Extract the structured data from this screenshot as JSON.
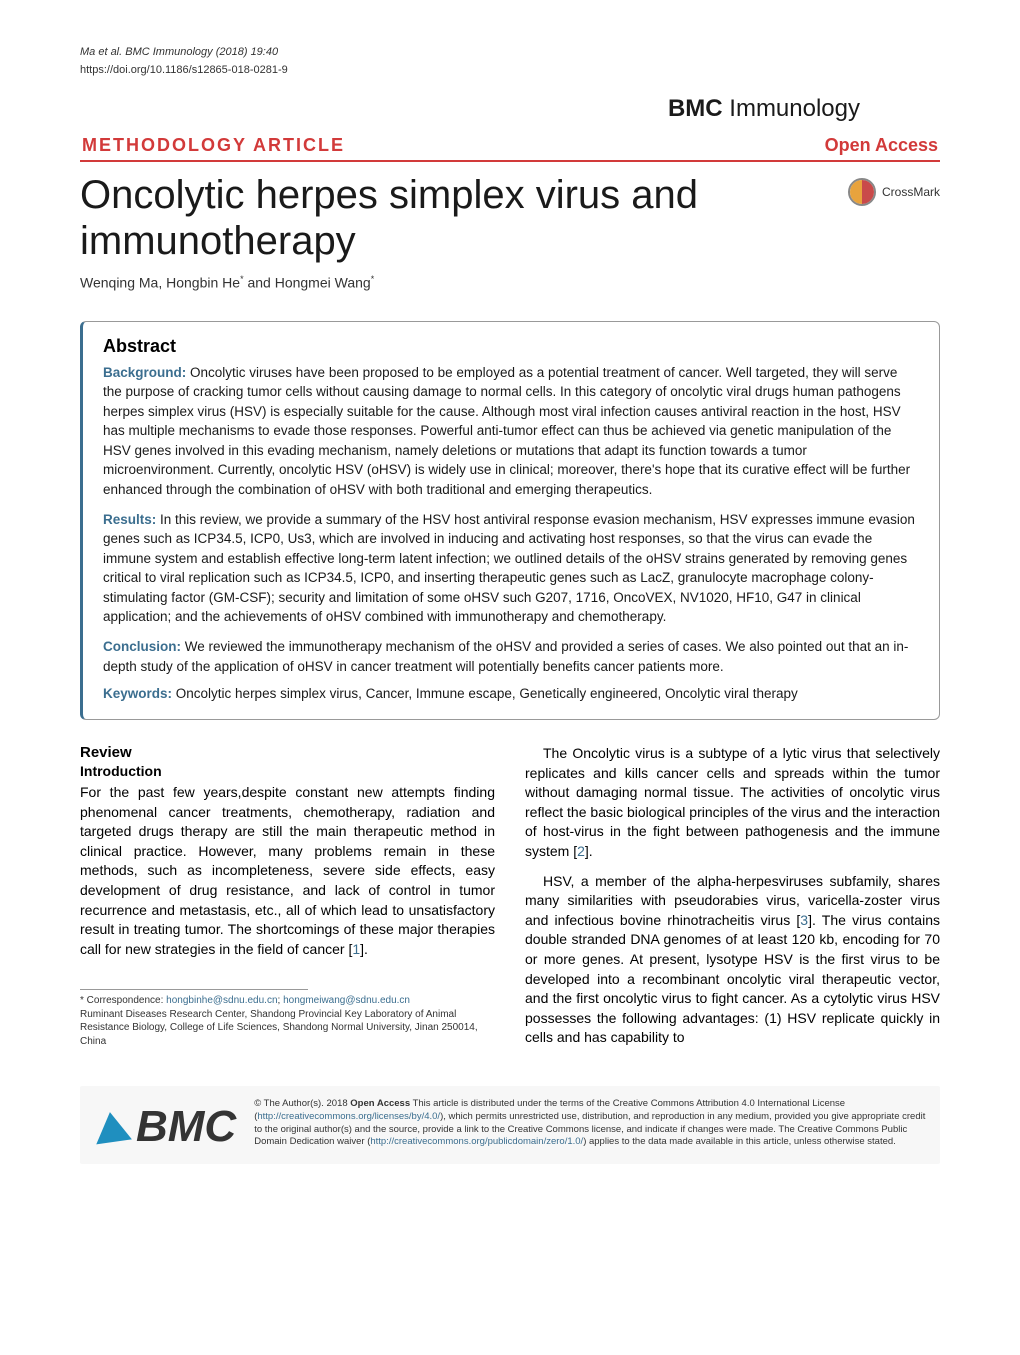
{
  "header": {
    "citation": "Ma et al. BMC Immunology     (2018) 19:40",
    "doi": "https://doi.org/10.1186/s12865-018-0281-9",
    "journal_prefix": "BMC",
    "journal_name": " Immunology"
  },
  "article_type": "METHODOLOGY ARTICLE",
  "open_access": "Open Access",
  "title": "Oncolytic herpes simplex virus and immunotherapy",
  "crossmark_label": "CrossMark",
  "authors_html": "Wenqing Ma, Hongbin He* and Hongmei Wang*",
  "abstract": {
    "heading": "Abstract",
    "background_label": "Background:",
    "background": " Oncolytic viruses have been proposed to be employed as a potential treatment of cancer. Well targeted, they will serve the purpose of cracking tumor cells without causing damage to normal cells. In this category of oncolytic viral drugs human pathogens herpes simplex virus (HSV) is especially suitable for the cause. Although most viral infection causes antiviral reaction in the host, HSV has multiple mechanisms to evade those responses. Powerful anti-tumor effect can thus be achieved via genetic manipulation of the HSV genes involved in this evading mechanism, namely deletions or mutations that adapt its function towards a tumor microenvironment. Currently, oncolytic HSV (oHSV) is widely use in clinical; moreover, there's hope that its curative effect will be further enhanced through the combination of oHSV with both traditional and emerging therapeutics.",
    "results_label": "Results:",
    "results": " In this review, we provide a summary of the HSV host antiviral response evasion mechanism, HSV expresses immune evasion genes such as ICP34.5, ICP0, Us3, which are involved in inducing and activating host responses, so that the virus can evade the immune system and establish effective long-term latent infection; we outlined details of the oHSV strains generated by removing genes critical to viral replication such as ICP34.5, ICP0, and inserting therapeutic genes such as LacZ, granulocyte macrophage colony-stimulating factor (GM-CSF); security and limitation of some oHSV such G207, 1716, OncoVEX, NV1020, HF10, G47 in clinical application; and the achievements of oHSV combined with immunotherapy and chemotherapy.",
    "conclusion_label": "Conclusion:",
    "conclusion": " We reviewed the immunotherapy mechanism of the oHSV and provided a series of cases. We also pointed out that an in-depth study of the application of oHSV in cancer treatment will potentially benefits cancer patients more.",
    "keywords_label": "Keywords:",
    "keywords": " Oncolytic herpes simplex virus, Cancer, Immune escape, Genetically engineered, Oncolytic viral therapy"
  },
  "body": {
    "review_heading": "Review",
    "intro_heading": "Introduction",
    "left_p1": "For the past few years,despite constant new attempts finding phenomenal cancer treatments, chemotherapy, radiation and targeted drugs therapy are still the main therapeutic method in clinical practice. However, many problems remain in these methods, such as incompleteness, severe side effects, easy development of drug resistance, and lack of control in tumor recurrence and metastasis, etc., all of which lead to unsatisfactory result in treating tumor. The shortcomings of these major therapies call for new strategies in the field of cancer [",
    "left_ref1": "1",
    "left_p1_end": "].",
    "right_p1_a": "The Oncolytic virus is a subtype of a lytic virus that selectively replicates and kills cancer cells and spreads within the tumor without damaging normal tissue. The activities of oncolytic virus reflect the basic biological principles of the virus and the interaction of host-virus in the fight between pathogenesis and the immune system [",
    "right_ref2": "2",
    "right_p1_b": "].",
    "right_p2_a": "HSV, a member of the alpha-herpesviruses subfamily, shares many similarities with pseudorabies virus, varicella-zoster virus and infectious bovine rhinotracheitis virus [",
    "right_ref3": "3",
    "right_p2_b": "]. The virus contains double stranded DNA genomes of at least 120 kb, encoding for 70 or more genes. At present, lysotype HSV is the first virus to be developed into a recombinant oncolytic viral therapeutic vector, and the first oncolytic virus to fight cancer. As a cytolytic virus HSV possesses the following advantages: (1) HSV replicate quickly in cells and has capability to"
  },
  "footnote": {
    "correspondence_label": "* Correspondence: ",
    "email1": "hongbinhe@sdnu.edu.cn",
    "sep": "; ",
    "email2": "hongmeiwang@sdnu.edu.cn",
    "affiliation": "Ruminant Diseases Research Center, Shandong Provincial Key Laboratory of Animal Resistance Biology, College of Life Sciences, Shandong Normal University, Jinan 250014, China"
  },
  "license": {
    "bmc": "BMC",
    "text_a": "© The Author(s). 2018 ",
    "open_access_bold": "Open Access",
    "text_b": " This article is distributed under the terms of the Creative Commons Attribution 4.0 International License (",
    "link1": "http://creativecommons.org/licenses/by/4.0/",
    "text_c": "), which permits unrestricted use, distribution, and reproduction in any medium, provided you give appropriate credit to the original author(s) and the source, provide a link to the Creative Commons license, and indicate if changes were made. The Creative Commons Public Domain Dedication waiver (",
    "link2": "http://creativecommons.org/publicdomain/zero/1.0/",
    "text_d": ") applies to the data made available in this article, unless otherwise stated."
  },
  "colors": {
    "accent_red": "#d23a3a",
    "accent_blue": "#3b6e8f",
    "text": "#1a1a1a",
    "border_gray": "#999999"
  }
}
